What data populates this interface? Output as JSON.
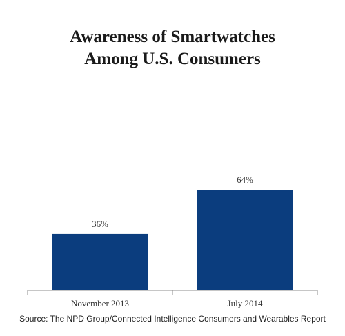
{
  "chart_data": {
    "type": "bar",
    "title": [
      "Awareness of Smartwatches",
      "Among U.S. Consumers"
    ],
    "categories": [
      "November 2013",
      "July 2014"
    ],
    "values": [
      36,
      64
    ],
    "data_labels": [
      "36%",
      "64%"
    ],
    "xlabel": "",
    "ylabel": "",
    "ylim": [
      0,
      100
    ],
    "grid": false,
    "legend": "none",
    "bar_color": "#0b3d7e"
  },
  "source": "Source: The NPD Group/Connected Intelligence Consumers and Wearables Report"
}
